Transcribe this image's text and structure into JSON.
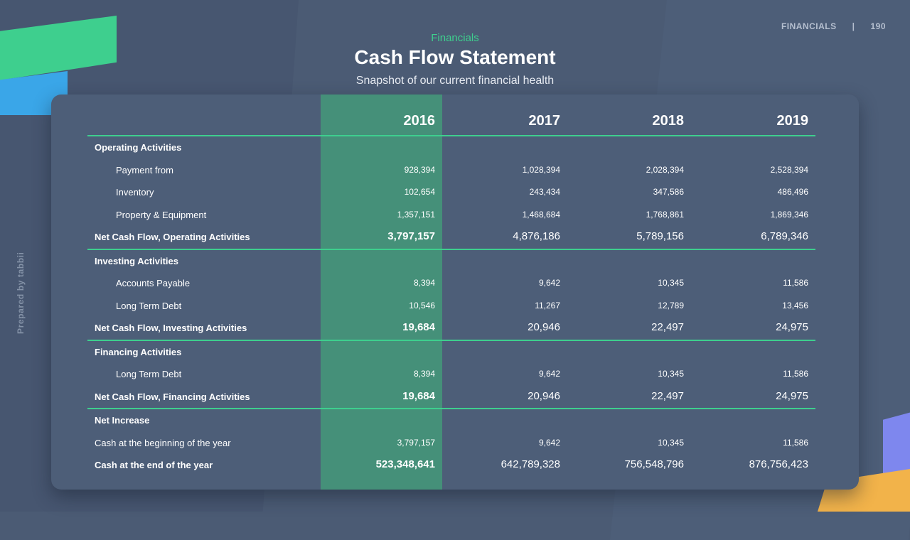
{
  "header": {
    "section": "FINANCIALS",
    "separator": "|",
    "page_number": "190"
  },
  "side_label": "Prepared by tabbii",
  "slide": {
    "kicker": "Financials",
    "title": "Cash Flow Statement",
    "subtitle": "Snapshot of our current financial health"
  },
  "colors": {
    "accent_green": "#3ecf8e",
    "highlight_column": "#459079",
    "background": "#4b5b74",
    "card": "#4d5e78"
  },
  "table": {
    "years": [
      "2016",
      "2017",
      "2018",
      "2019"
    ],
    "highlighted_year": "2016",
    "rows": [
      {
        "type": "section",
        "label": "Operating Activities",
        "values": []
      },
      {
        "type": "item",
        "label": "Payment from",
        "values": [
          "928,394",
          "1,028,394",
          "2,028,394",
          "2,528,394"
        ]
      },
      {
        "type": "item",
        "label": "Inventory",
        "values": [
          "102,654",
          "243,434",
          "347,586",
          "486,496"
        ]
      },
      {
        "type": "item",
        "label": "Property & Equipment",
        "values": [
          "1,357,151",
          "1,468,684",
          "1,768,861",
          "1,869,346"
        ]
      },
      {
        "type": "total",
        "label": "Net Cash Flow, Operating Activities",
        "values": [
          "3,797,157",
          "4,876,186",
          "5,789,156",
          "6,789,346"
        ]
      },
      {
        "type": "section",
        "label": "Investing Activities",
        "values": []
      },
      {
        "type": "item",
        "label": "Accounts Payable",
        "values": [
          "8,394",
          "9,642",
          "10,345",
          "11,586"
        ]
      },
      {
        "type": "item",
        "label": "Long Term Debt",
        "values": [
          "10,546",
          "11,267",
          "12,789",
          "13,456"
        ]
      },
      {
        "type": "total",
        "label": "Net Cash Flow, Investing Activities",
        "values": [
          "19,684",
          "20,946",
          "22,497",
          "24,975"
        ]
      },
      {
        "type": "section",
        "label": "Financing Activities",
        "values": []
      },
      {
        "type": "item",
        "label": "Long Term Debt",
        "values": [
          "8,394",
          "9,642",
          "10,345",
          "11,586"
        ]
      },
      {
        "type": "total",
        "label": "Net Cash Flow, Financing Activities",
        "values": [
          "19,684",
          "20,946",
          "22,497",
          "24,975"
        ]
      },
      {
        "type": "section",
        "label": "Net Increase",
        "values": []
      },
      {
        "type": "plain",
        "label": "Cash at the beginning of the year",
        "values": [
          "3,797,157",
          "9,642",
          "10,345",
          "11,586"
        ]
      },
      {
        "type": "final",
        "label": "Cash at the end of the year",
        "values": [
          "523,348,641",
          "642,789,328",
          "756,548,796",
          "876,756,423"
        ]
      }
    ]
  }
}
